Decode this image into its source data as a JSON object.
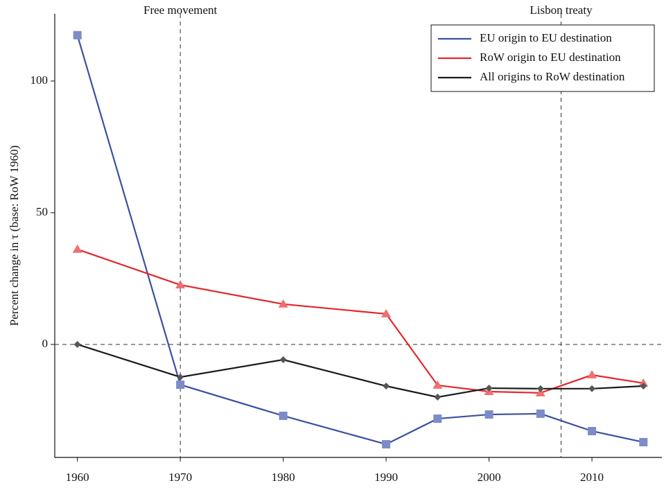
{
  "chart_data": {
    "type": "line",
    "y_label": "Percent change in τ (base: RoW 1960)",
    "x": [
      1960,
      1970,
      1980,
      1990,
      1995,
      2000,
      2005,
      2010,
      2015
    ],
    "series": [
      {
        "name": "EU origin to EU destination",
        "color": "#3a4fa0",
        "marker_color": "#7b8cc8",
        "marker": "square",
        "values": [
          117.4,
          -15.3,
          -27.1,
          -37.9,
          -28.2,
          -26.6,
          -26.3,
          -32.9,
          -37.1
        ]
      },
      {
        "name": "RoW origin to EU destination",
        "color": "#e3262a",
        "marker_color": "#ee7070",
        "marker": "triangle",
        "values": [
          36.1,
          22.6,
          15.3,
          11.6,
          -15.5,
          -17.9,
          -18.4,
          -11.6,
          -14.7
        ]
      },
      {
        "name": "All origins to RoW destination",
        "color": "#1a1a1a",
        "marker_color": "#555555",
        "marker": "diamond",
        "values": [
          0,
          -12.4,
          -5.8,
          -15.8,
          -20,
          -16.6,
          -16.8,
          -16.8,
          -15.8
        ]
      }
    ],
    "reference_lines": [
      {
        "x": 1970,
        "label": "Free movement"
      },
      {
        "x": 2007,
        "label": "Lisbon treaty"
      }
    ],
    "hline": 0,
    "xlim": [
      1957.8,
      2016.8
    ],
    "ylim": [
      -42.9,
      125.5
    ],
    "xticks": [
      1960,
      1970,
      1980,
      1990,
      2000,
      2010
    ],
    "yticks": [
      0,
      50,
      100
    ],
    "legend": "upper right"
  }
}
